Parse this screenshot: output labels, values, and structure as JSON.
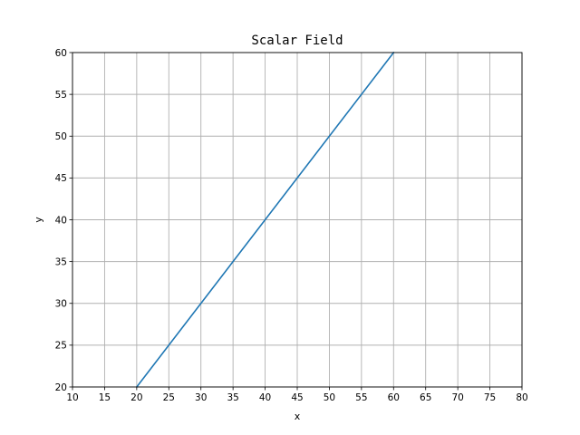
{
  "chart_data": {
    "type": "line",
    "title": "Scalar Field",
    "xlabel": "x",
    "ylabel": "y",
    "xlim": [
      10,
      80
    ],
    "ylim": [
      20,
      60
    ],
    "xticks": [
      10,
      15,
      20,
      25,
      30,
      35,
      40,
      45,
      50,
      55,
      60,
      65,
      70,
      75,
      80
    ],
    "yticks": [
      20,
      25,
      30,
      35,
      40,
      45,
      50,
      55,
      60
    ],
    "grid": true,
    "series": [
      {
        "x": [
          20,
          60
        ],
        "y": [
          20,
          60
        ],
        "color": "#1f77b4"
      }
    ]
  }
}
